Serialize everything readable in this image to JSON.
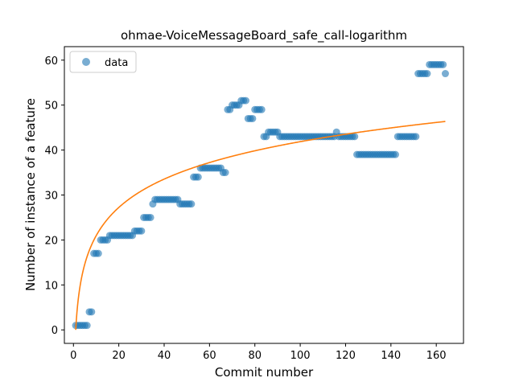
{
  "chart_data": {
    "type": "scatter",
    "title": "ohmae-VoiceMessageBoard_safe_call-logarithm",
    "xlabel": "Commit number",
    "ylabel": "Number of instance of a feature",
    "xlim": [
      -4,
      172
    ],
    "ylim": [
      -3,
      63
    ],
    "xticks": [
      0,
      20,
      40,
      60,
      80,
      100,
      120,
      140,
      160
    ],
    "yticks": [
      0,
      10,
      20,
      30,
      40,
      50,
      60
    ],
    "grid": false,
    "legend": {
      "placement": "upper-left",
      "entries": [
        "data"
      ]
    },
    "colors": {
      "data": "#1f77b4",
      "fit": "#ff7f0e"
    },
    "series": [
      {
        "name": "data",
        "kind": "scatter",
        "points": [
          [
            1,
            1
          ],
          [
            2,
            1
          ],
          [
            3,
            1
          ],
          [
            4,
            1
          ],
          [
            5,
            1
          ],
          [
            6,
            1
          ],
          [
            7,
            4
          ],
          [
            8,
            4
          ],
          [
            9,
            17
          ],
          [
            10,
            17
          ],
          [
            11,
            17
          ],
          [
            12,
            20
          ],
          [
            13,
            20
          ],
          [
            14,
            20
          ],
          [
            15,
            20
          ],
          [
            16,
            21
          ],
          [
            17,
            21
          ],
          [
            18,
            21
          ],
          [
            19,
            21
          ],
          [
            20,
            21
          ],
          [
            21,
            21
          ],
          [
            22,
            21
          ],
          [
            23,
            21
          ],
          [
            24,
            21
          ],
          [
            25,
            21
          ],
          [
            26,
            21
          ],
          [
            27,
            22
          ],
          [
            28,
            22
          ],
          [
            29,
            22
          ],
          [
            30,
            22
          ],
          [
            31,
            25
          ],
          [
            32,
            25
          ],
          [
            33,
            25
          ],
          [
            34,
            25
          ],
          [
            35,
            28
          ],
          [
            36,
            29
          ],
          [
            37,
            29
          ],
          [
            38,
            29
          ],
          [
            39,
            29
          ],
          [
            40,
            29
          ],
          [
            41,
            29
          ],
          [
            42,
            29
          ],
          [
            43,
            29
          ],
          [
            44,
            29
          ],
          [
            45,
            29
          ],
          [
            46,
            29
          ],
          [
            47,
            28
          ],
          [
            48,
            28
          ],
          [
            49,
            28
          ],
          [
            50,
            28
          ],
          [
            51,
            28
          ],
          [
            52,
            28
          ],
          [
            53,
            34
          ],
          [
            54,
            34
          ],
          [
            55,
            34
          ],
          [
            56,
            36
          ],
          [
            57,
            36
          ],
          [
            58,
            36
          ],
          [
            59,
            36
          ],
          [
            60,
            36
          ],
          [
            61,
            36
          ],
          [
            62,
            36
          ],
          [
            63,
            36
          ],
          [
            64,
            36
          ],
          [
            65,
            36
          ],
          [
            66,
            35
          ],
          [
            67,
            35
          ],
          [
            68,
            49
          ],
          [
            69,
            49
          ],
          [
            70,
            50
          ],
          [
            71,
            50
          ],
          [
            72,
            50
          ],
          [
            73,
            50
          ],
          [
            74,
            51
          ],
          [
            75,
            51
          ],
          [
            76,
            51
          ],
          [
            77,
            47
          ],
          [
            78,
            47
          ],
          [
            79,
            47
          ],
          [
            80,
            49
          ],
          [
            81,
            49
          ],
          [
            82,
            49
          ],
          [
            83,
            49
          ],
          [
            84,
            43
          ],
          [
            85,
            43
          ],
          [
            86,
            44
          ],
          [
            87,
            44
          ],
          [
            88,
            44
          ],
          [
            89,
            44
          ],
          [
            90,
            44
          ],
          [
            91,
            43
          ],
          [
            92,
            43
          ],
          [
            93,
            43
          ],
          [
            94,
            43
          ],
          [
            95,
            43
          ],
          [
            96,
            43
          ],
          [
            97,
            43
          ],
          [
            98,
            43
          ],
          [
            99,
            43
          ],
          [
            100,
            43
          ],
          [
            101,
            43
          ],
          [
            102,
            43
          ],
          [
            103,
            43
          ],
          [
            104,
            43
          ],
          [
            105,
            43
          ],
          [
            106,
            43
          ],
          [
            107,
            43
          ],
          [
            108,
            43
          ],
          [
            109,
            43
          ],
          [
            110,
            43
          ],
          [
            111,
            43
          ],
          [
            112,
            43
          ],
          [
            113,
            43
          ],
          [
            114,
            43
          ],
          [
            115,
            43
          ],
          [
            116,
            44
          ],
          [
            117,
            43
          ],
          [
            118,
            43
          ],
          [
            119,
            43
          ],
          [
            120,
            43
          ],
          [
            121,
            43
          ],
          [
            122,
            43
          ],
          [
            123,
            43
          ],
          [
            124,
            43
          ],
          [
            125,
            39
          ],
          [
            126,
            39
          ],
          [
            127,
            39
          ],
          [
            128,
            39
          ],
          [
            129,
            39
          ],
          [
            130,
            39
          ],
          [
            131,
            39
          ],
          [
            132,
            39
          ],
          [
            133,
            39
          ],
          [
            134,
            39
          ],
          [
            135,
            39
          ],
          [
            136,
            39
          ],
          [
            137,
            39
          ],
          [
            138,
            39
          ],
          [
            139,
            39
          ],
          [
            140,
            39
          ],
          [
            141,
            39
          ],
          [
            142,
            39
          ],
          [
            143,
            43
          ],
          [
            144,
            43
          ],
          [
            145,
            43
          ],
          [
            146,
            43
          ],
          [
            147,
            43
          ],
          [
            148,
            43
          ],
          [
            149,
            43
          ],
          [
            150,
            43
          ],
          [
            151,
            43
          ],
          [
            152,
            57
          ],
          [
            153,
            57
          ],
          [
            154,
            57
          ],
          [
            155,
            57
          ],
          [
            156,
            57
          ],
          [
            157,
            59
          ],
          [
            158,
            59
          ],
          [
            159,
            59
          ],
          [
            160,
            59
          ],
          [
            161,
            59
          ],
          [
            162,
            59
          ],
          [
            163,
            59
          ],
          [
            164,
            57
          ]
        ]
      },
      {
        "kind": "line",
        "function": "a*ln(x)+b",
        "a": 9.0909,
        "b": 0,
        "x_range": [
          1,
          164
        ]
      }
    ]
  }
}
